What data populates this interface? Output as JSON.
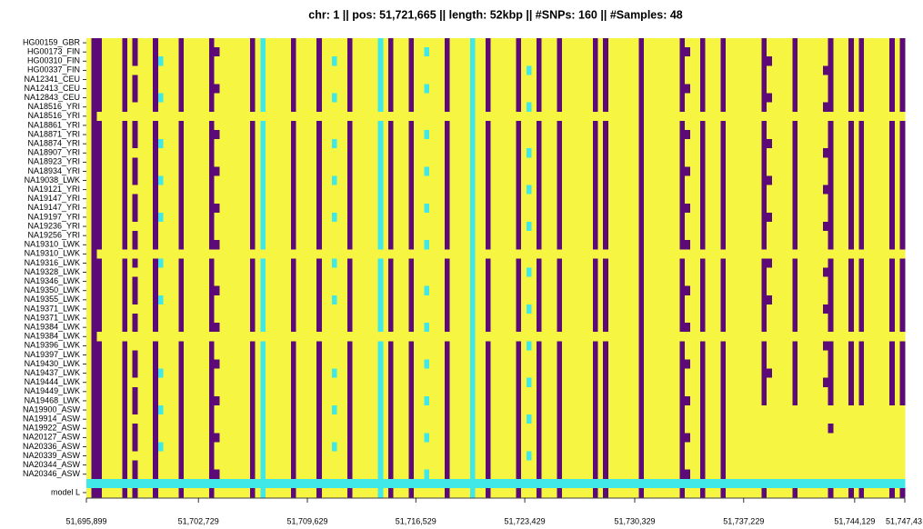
{
  "chart_data": {
    "type": "heatmap",
    "title": "chr: 1  ||  pos: 51,721,665  ||  length: 52kbp  ||  #SNPs: 160  ||  #Samples: 48",
    "colors": [
      "#f5f542",
      "#40e8e8",
      "#5c0a78",
      "#1e22b8"
    ],
    "rows": [
      "HG00159_GBR",
      "HG00173_FIN",
      "HG00310_FIN",
      "HG00337_FIN",
      "NA12341_CEU",
      "NA12413_CEU",
      "NA12843_CEU",
      "NA18516_YRI",
      "NA18516_YRI",
      "NA18861_YRI",
      "NA18871_YRI",
      "NA18874_YRI",
      "NA18907_YRI",
      "NA18923_YRI",
      "NA18934_YRI",
      "NA19038_LWK",
      "NA19121_YRI",
      "NA19147_YRI",
      "NA19147_YRI",
      "NA19197_YRI",
      "NA19236_YRI",
      "NA19256_YRI",
      "NA19310_LWK",
      "NA19310_LWK",
      "NA19316_LWK",
      "NA19328_LWK",
      "NA19346_LWK",
      "NA19350_LWK",
      "NA19355_LWK",
      "NA19371_LWK",
      "NA19371_LWK",
      "NA19384_LWK",
      "NA19384_LWK",
      "NA19396_LWK",
      "NA19397_LWK",
      "NA19430_LWK",
      "NA19437_LWK",
      "NA19444_LWK",
      "NA19449_LWK",
      "NA19468_LWK",
      "NA19900_ASW",
      "NA19914_ASW",
      "NA19922_ASW",
      "NA20127_ASW",
      "NA20336_ASW",
      "NA20339_ASW",
      "NA20344_ASW",
      "NA20346_ASW",
      null,
      "model L"
    ],
    "matrix": [
      "0220000202 0002000020 0000200000 0020100000 2000020000 0200000102 0002000000 2000010020 0000200020 0020000002 0200000020 0000002000 2000200000 0020000020 0000020002 0200000202",
      "0220000202 0002000020 0000220000 0020100000 2000020000 0200000102 0002001000 2000010020 0000200020 0020000002 0200000020 0000002200 2000200000 0020000020 0000020002 0200000202",
      "0220000202 0002100020 0000200000 0020100000 2000020010 0200000102 0002000000 2000010020 0000200020 0020000002 0200000020 0000002000 2000200000 0022000020 0000020002 0200000202",
      "0220000200 0002000020 0000200000 0020100000 2000020000 0200000102 0002000000 2000010020 0000201020 0020000002 0200000020 0000002000 2000200000 0020000020 0000220002 0200000202",
      "0220000202 0002000020 0000200000 0020100000 2000020000 0200000102 0002000000 2000010020 0000200020 0020000002 0200000020 0000002000 2000200000 0020000020 0000020002 0200000202",
      "0220000202 0002000020 0000220000 0020100000 2000020000 0200000102 0002001000 2000010020 0000200020 0020000002 0200000020 0000002200 2000200000 0020000020 0000020002 0200000202",
      "0220000202 0002100020 0000200000 0020100000 2000020010 0200000102 0002000000 2000010020 0000200020 0020000002 0200000020 0000002000 2000200000 0022000020 0000020002 0200000202",
      "0220000200 0002000020 0000200000 0020100000 2000020000 0200000102 0002000000 2000010020 0000201020 0020000002 0200000020 0000002000 2000200000 0020000020 0000220002 0200000202",
      "0200000000 0000000000 0000000000 0000000000 0000000000 0000000000 0000000000 0000010000 0000000000 0000000000 0000000020 0000000000 0000000000 0000000000 0000000000 0000000000",
      "0220000202 0002000020 0000200000 0020100000 2000020000 0200000102 0002000000 2000010020 0000200020 0020000002 0200000020 0000002000 2000200000 0020000020 0000020002 0200000202",
      "0220000202 0002000020 0000220000 0020100000 2000020000 0200000102 0002001000 2000010020 0000200020 0020000002 0200000020 0000002200 2000200000 0020000020 0000020002 0200000202",
      "0220000202 0002100020 0000200000 0020100000 2000020010 0200000102 0002000000 2000010020 0000200020 0020000002 0200000020 0000002000 2000200000 0022000020 0000020002 0200000202",
      "0220000200 0002000020 0000200000 0020100000 2000020000 0200000102 0002000000 2000010020 0000201020 0020000002 0200000020 0000002000 2000200000 0020000020 0000220002 0200000202",
      "0220000202 0002000020 0000200000 0020100000 2000020000 0200000102 0002000000 2000010020 0000200020 0020000002 0200000020 0000002000 2000200000 0020000020 0000020002 0200000202",
      "0220000202 0002000020 0000220000 0020100000 2000020000 0200000102 0002001000 2000010020 0000200020 0020000002 0200000020 0000002200 2000200000 0020000020 0000020002 0200000202",
      "0220000202 0002100020 0000200000 0020100000 2000020010 0200000102 0002000000 2000010020 0000200020 0020000002 0200000020 0000002000 2000200000 0022000020 0000020002 0200000202",
      "0220000200 0002000020 0000200000 0020100000 2000020000 0200000102 0002000000 2000010020 0000201020 0020000002 0200000020 0000002000 2000200000 0020000020 0000220002 0200000202",
      "0220000202 0002000020 0000200000 0020100000 2000020000 0200000102 0002000000 2000010020 0000200020 0020000002 0200000020 0000002000 2000200000 0020000020 0000020002 0200000202",
      "0220000202 0002000020 0000220000 0020100000 2000020000 0200000102 0002001000 2000010020 0000200020 0020000002 0200000020 0000002200 2000200000 0020000020 0000020002 0200000202",
      "0220000202 0002100020 0000200000 0020100000 2000020010 0200000102 0002000000 2000010020 0000200020 0020000002 0200000020 0000002000 2000200000 0022000020 0000020002 0200000202",
      "0220000200 0002000020 0000200000 0020100000 2000020000 0200000102 0002000000 2000010020 0000201020 0020000002 0200000020 0000002000 2000200000 0020000020 0000220002 0200000202",
      "0220000202 0002000020 0000200000 0020100000 2000020000 0200000102 0002000000 2000010020 0000200020 0020000002 0200000020 0000002000 2000200000 0020000020 0000020002 0200000202",
      "0220000202 0002000020 0000220000 0020100000 2000020000 0200000102 0002001000 2000010020 0000200020 0020000002 0200000020 0000002200 2000200000 0020000020 0000020002 0200000202",
      "0200000000 0000000000 0000000000 0000000000 0000000000 0000000000 0000000000 0000010000 0000000000 0000000000 0000000020 0000000000 0000000000 0000000000 0000000000 0000000000",
      "0220000202 0002100020 0000200000 0020100000 2000020010 0200000102 0002000000 2000010020 0000200020 0020000002 0200000020 0000002000 2000200000 0022000020 0000020002 0200000202",
      "0220000200 0002000020 0000200000 0020100000 2000020000 0200000102 0002000000 2000010020 0000201020 0020000002 0200000020 0000002000 2000200000 0020000020 0000220002 0200000202",
      "0220000202 0002000020 0000200000 0020100000 2000020000 0200000102 0002000000 2000010020 0000200020 0020000002 0200000020 0000002000 2000200000 0020000020 0000020002 0200000202",
      "0220000202 0002000020 0000220000 0020100000 2000020000 0200000102 0002001000 2000010020 0000200020 0020000002 0200000020 0000002200 2000200000 0020000020 0000020002 0200000202",
      "0220000202 0002100020 0000200000 0020100000 2000020010 0200000102 0002000000 2000010020 0000200020 0020000002 0200000020 0000002000 2000200000 0022000020 0000020002 0200000202",
      "0220000200 0002000020 0000200000 0020100000 2000020000 0200000102 0002000000 2000010020 0000201020 0020000002 0200000020 0000002000 2000200000 0020000020 0000220002 0200000202",
      "0220000202 0002000020 0000200000 0020100000 2000020000 0200000102 0002000000 2000010020 0000200020 0020000002 0200000020 0000002000 2000200000 0020000020 0000020002 0200000202",
      "0220000202 0002000020 0000220000 0020100000 2000020000 0200000102 0002001000 2000010020 0000200020 0020000002 0200000020 0000002200 2000200000 0020000020 0000020002 0200000202",
      "0200000000 0000000000 0000000000 0000000000 0000000000 0000000000 0000000000 0000010000 0000000000 0000000000 0000000020 0000000000 0000000000 0000000000 0000000000 0000000000",
      "0220000200 0002000020 0000200000 0020100000 2000020000 0200000102 0002000000 2000010020 0000201020 0020000002 0200000020 0000002000 2000200000 0020000020 0000220002 0200000202",
      "0220000202 0002000020 0000200000 0020100000 2000020000 0200000102 0002000000 2000010020 0000200020 0020000002 0200000020 0000002000 2000200000 0020000020 0000020002 0200000202",
      "0220000202 0002000020 0000220000 0020100000 2000020000 0200000102 0002001000 2000010020 0000200020 0020000002 0200000020 0000002200 2000200000 0020000020 0000020002 0200000202",
      "0220000202 0002100020 0000200000 0020100000 2000020010 0200000102 0002000000 2000010020 0000200020 0020000002 0200000020 0000002000 2000200000 0022000020 0000020002 0200000202",
      "0220000200 0002000020 0000200000 0020100000 2000020000 0200000102 0002000000 2000010020 0000201020 0020000002 0200000020 0000002000 2000200000 0020000020 0000220002 0200000202",
      "0220000202 0002000020 0000200000 0020100000 2000020000 0200000102 0002000000 2000010020 0000200020 0020000002 0200000020 0000002000 2000200000 0020000020 0000020002 0200000202",
      "0220000202 0002000020 0000220000 0020100000 2000020000 0200000102 0002001000 2000010020 0000200020 0020000002 0200000020 0000002200 2000200000 0020000020 0000020002 0200000202",
      "0220000202 0002100020 0000200000 0020100000 2000020010 0200000102 0002000000 2000010020 0000200020 0020000002 0200000020 0000002000 2000200000 0000000000 0000000000 0000000000",
      "0220000200 0002000020 0000200000 0020100000 2000020000 0200000102 0002000000 2000010020 0000201020 0020000002 0200000020 0000002000 2000200000 0000000000 0000000000 0000000000",
      "0220000202 0002000020 0000200000 0020100000 2000020000 0200000102 0002000000 2000010020 0000200020 0020000002 0200000020 0000002000 2000200000 0000000000 0000020000 0000000000",
      "0220000202 0002000020 0000220000 0020100000 2000020000 0200000102 0002001000 2000010020 0000200020 0020000002 0200000020 0000002200 2000200000 0000000000 0000000000 0000000000",
      "0220000202 0002100020 0000200000 0020100000 2000020010 0200000102 0002000000 2000010020 0000200020 0020000002 0200000020 0000002000 2000200000 0000000000 0000000000 0000000000",
      "0220000200 0002000020 0000200000 0020100000 2000020000 0200000102 0002000000 2000010020 0000201020 0020000002 0200000020 0000002000 2000200000 0000000000 0000000000 0000000000",
      "0220000202 0002000020 0000200000 0020100000 2000020000 0200000102 0002000000 2000010020 0000200020 0020000002 0200000020 0000002000 2000200000 0000000000 0000000000 0000000000",
      "0220000202 0002000020 0000220000 0020100000 2000020000 0200000102 0002001000 2000010020 0000200020 0020000002 0200000020 0000002200 2000200000 0000000000 0000000000 0000000000",
      "1111111111 1111111111 1111111111 1111111111 1111111111 1111111111 1111111111 1111111111 1111111111 1111111111 1111111111 1111111111 1111111111 1111111111 1111111111 1111111111",
      "0220000202 0002000020 0000200000 0020100000 2000020000 0200000102 0002000000 2000010020 0000200020 0020000002 0200000020 0000002000 2000200000 0020000020 0000020002 0200000202"
    ],
    "xlim": [
      0,
      160
    ],
    "xticks": [
      {
        "value": 0,
        "label": "51,695,899"
      },
      {
        "value": 21.9,
        "label": "51,702,729"
      },
      {
        "value": 43.2,
        "label": "51,709,629"
      },
      {
        "value": 64.4,
        "label": "51,716,529"
      },
      {
        "value": 85.7,
        "label": "51,723,429"
      },
      {
        "value": 107.2,
        "label": "51,730,329"
      },
      {
        "value": 128.5,
        "label": "51,737,229"
      },
      {
        "value": 150.2,
        "label": "51,744,129"
      },
      {
        "value": 160,
        "label": "51,747,43"
      }
    ]
  }
}
